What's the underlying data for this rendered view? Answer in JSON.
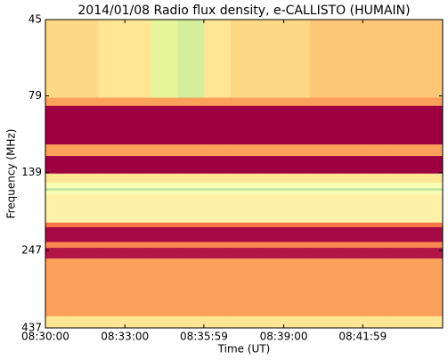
{
  "chart_data": {
    "type": "heatmap",
    "title": "2014/01/08  Radio flux density, e-CALLISTO (HUMAIN)",
    "x_label": "Time (UT)",
    "y_label": "Frequency (MHz)",
    "xlim": [
      "08:30:00",
      "08:45:00"
    ],
    "xticks": [
      "08:30:00",
      "08:33:00",
      "08:35:59",
      "08:39:00",
      "08:41:59"
    ],
    "ylim": [
      45,
      437
    ],
    "y_log": true,
    "y_inverted": true,
    "yticks": [
      45,
      79,
      139,
      247,
      437
    ],
    "x_edges": [
      "08:30:00",
      "08:31:00",
      "08:32:00",
      "08:33:00",
      "08:34:00",
      "08:35:00",
      "08:36:00",
      "08:37:00",
      "08:38:00",
      "08:39:00",
      "08:40:00",
      "08:41:00",
      "08:42:00",
      "08:43:00",
      "08:44:00",
      "08:45:00"
    ],
    "y_edges": [
      45,
      80,
      85,
      113,
      123,
      140,
      150,
      156,
      159,
      163,
      201,
      208,
      232,
      242,
      262,
      401,
      437
    ],
    "colormap": [
      "#9e0142",
      "#d53e4f",
      "#f46d43",
      "#fdae61",
      "#fee08b",
      "#ffffbf",
      "#e6f598",
      "#abdda4"
    ],
    "z": [
      [
        0.55,
        0.55,
        0.6,
        0.6,
        0.85,
        0.9,
        0.6,
        0.55,
        0.55,
        0.55,
        0.5,
        0.5,
        0.5,
        0.5,
        0.5
      ],
      [
        0.4,
        0.4,
        0.4,
        0.4,
        0.4,
        0.4,
        0.4,
        0.4,
        0.4,
        0.4,
        0.4,
        0.4,
        0.4,
        0.4,
        0.4
      ],
      [
        0,
        0,
        0,
        0,
        0,
        0,
        0,
        0,
        0,
        0,
        0,
        0,
        0,
        0,
        0
      ],
      [
        0.4,
        0.4,
        0.4,
        0.4,
        0.4,
        0.4,
        0.4,
        0.4,
        0.4,
        0.4,
        0.4,
        0.4,
        0.4,
        0.4,
        0.4
      ],
      [
        0,
        0,
        0,
        0,
        0,
        0,
        0,
        0,
        0,
        0,
        0,
        0,
        0,
        0,
        0
      ],
      [
        0.6,
        0.6,
        0.6,
        0.6,
        0.6,
        0.6,
        0.6,
        0.6,
        0.6,
        0.6,
        0.6,
        0.6,
        0.6,
        0.6,
        0.6
      ],
      [
        0.75,
        0.75,
        0.75,
        0.75,
        0.75,
        0.75,
        0.75,
        0.75,
        0.75,
        0.75,
        0.75,
        0.75,
        0.75,
        0.75,
        0.75
      ],
      [
        0.95,
        0.95,
        0.95,
        0.95,
        0.95,
        0.95,
        0.95,
        0.95,
        0.95,
        0.95,
        0.95,
        0.95,
        0.95,
        0.95,
        0.95
      ],
      [
        0.75,
        0.75,
        0.75,
        0.75,
        0.75,
        0.75,
        0.75,
        0.75,
        0.75,
        0.75,
        0.75,
        0.75,
        0.75,
        0.75,
        0.75
      ],
      [
        0.65,
        0.65,
        0.65,
        0.65,
        0.65,
        0.65,
        0.65,
        0.65,
        0.65,
        0.65,
        0.65,
        0.65,
        0.65,
        0.65,
        0.65
      ],
      [
        0.3,
        0.3,
        0.3,
        0.3,
        0.3,
        0.3,
        0.3,
        0.3,
        0.3,
        0.3,
        0.3,
        0.3,
        0.3,
        0.3,
        0.3
      ],
      [
        0.02,
        0.02,
        0.02,
        0.02,
        0.02,
        0.02,
        0.02,
        0.02,
        0.02,
        0.02,
        0.02,
        0.02,
        0.02,
        0.02,
        0.02
      ],
      [
        0.35,
        0.35,
        0.35,
        0.35,
        0.35,
        0.35,
        0.35,
        0.35,
        0.35,
        0.35,
        0.35,
        0.35,
        0.35,
        0.35,
        0.35
      ],
      [
        0.05,
        0.05,
        0.05,
        0.05,
        0.05,
        0.05,
        0.05,
        0.05,
        0.05,
        0.05,
        0.05,
        0.05,
        0.05,
        0.05,
        0.05
      ],
      [
        0.4,
        0.4,
        0.4,
        0.4,
        0.4,
        0.4,
        0.4,
        0.4,
        0.4,
        0.4,
        0.4,
        0.4,
        0.4,
        0.4,
        0.4
      ],
      [
        0.6,
        0.6,
        0.6,
        0.6,
        0.6,
        0.6,
        0.6,
        0.6,
        0.6,
        0.6,
        0.6,
        0.6,
        0.6,
        0.6,
        0.6
      ]
    ]
  }
}
